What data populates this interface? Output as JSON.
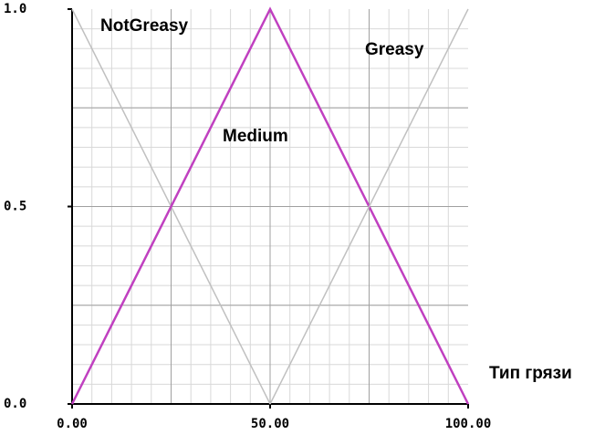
{
  "chart_data": {
    "type": "line",
    "xlabel": "Тип грязи",
    "xlim": [
      0,
      100
    ],
    "ylim": [
      0,
      1
    ],
    "xticks": [
      {
        "value": 0,
        "label": "0.00"
      },
      {
        "value": 50,
        "label": "50.00"
      },
      {
        "value": 100,
        "label": "100.00"
      }
    ],
    "yticks": [
      {
        "value": 0,
        "label": "0.0"
      },
      0.5,
      {
        "value": 1,
        "label": "1.0"
      }
    ],
    "grid": true,
    "x_grid": [
      5,
      10,
      15,
      20,
      25,
      30,
      35,
      40,
      45,
      50,
      55,
      60,
      65,
      70,
      75,
      80,
      85,
      90,
      95
    ],
    "y_grid": [
      0.05,
      0.1,
      0.15,
      0.2,
      0.25,
      0.3,
      0.35,
      0.4,
      0.45,
      0.5,
      0.55,
      0.6,
      0.65,
      0.7,
      0.75,
      0.8,
      0.85,
      0.9,
      0.95
    ],
    "x_major_grid": [
      25,
      50,
      75
    ],
    "y_major_grid": [
      0.25,
      0.5,
      0.75
    ],
    "series": [
      {
        "name": "NotGreasy",
        "color": "#c0c0c0",
        "x": [
          0,
          50
        ],
        "values": [
          1,
          0
        ]
      },
      {
        "name": "Medium",
        "color": "#c040c0",
        "x": [
          0,
          50,
          100
        ],
        "values": [
          0,
          1,
          0
        ]
      },
      {
        "name": "Greasy",
        "color": "#c0c0c0",
        "x": [
          50,
          100
        ],
        "values": [
          0,
          1
        ]
      }
    ]
  }
}
